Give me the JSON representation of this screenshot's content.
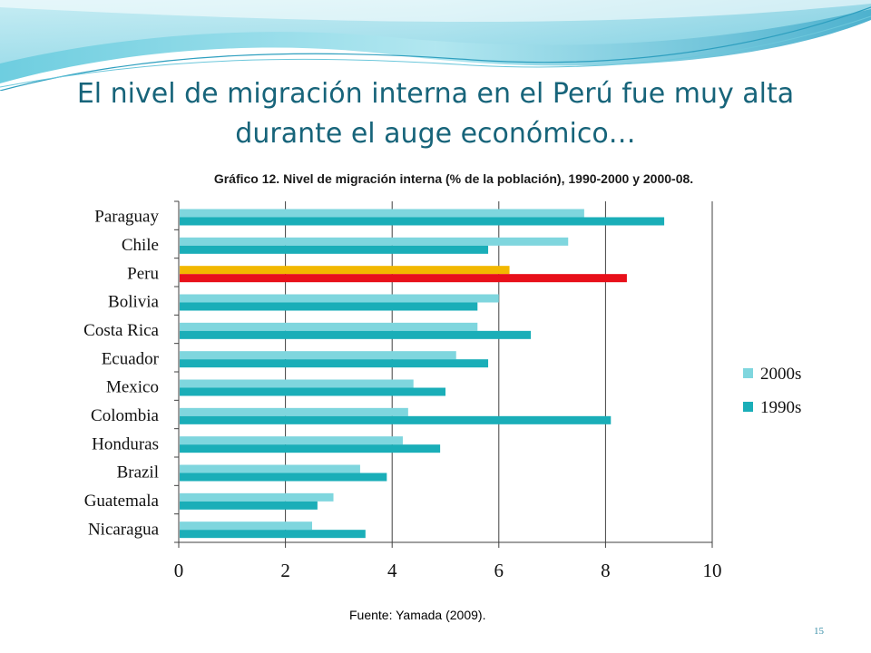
{
  "slide": {
    "title_line1": "El nivel de migración interna en el Perú fue muy alta",
    "title_line2": "durante el auge económico…",
    "source": "Fuente: Yamada (2009).",
    "page_number": "15"
  },
  "colors": {
    "title": "#17647a",
    "series_2000s": "#7fd6de",
    "series_1990s": "#1aaeb8",
    "highlight_2000s": "#f2b800",
    "highlight_1990s": "#e8101a",
    "grid": "#404040"
  },
  "chart_data": {
    "type": "bar",
    "orientation": "horizontal",
    "title": "Gráfico 12. Nivel de migración interna (% de la población), 1990-2000 y 2000-08.",
    "categories": [
      "Paraguay",
      "Chile",
      "Peru",
      "Bolivia",
      "Costa Rica",
      "Ecuador",
      "Mexico",
      "Colombia",
      "Honduras",
      "Brazil",
      "Guatemala",
      "Nicaragua"
    ],
    "highlight_category": "Peru",
    "series": [
      {
        "name": "2000s",
        "values": [
          7.6,
          7.3,
          6.2,
          6.0,
          5.6,
          5.2,
          4.4,
          4.3,
          4.2,
          3.4,
          2.9,
          2.5
        ]
      },
      {
        "name": "1990s",
        "values": [
          9.1,
          5.8,
          8.4,
          5.6,
          6.6,
          5.8,
          5.0,
          8.1,
          4.9,
          3.9,
          2.6,
          3.5
        ]
      }
    ],
    "xlim": [
      0,
      10
    ],
    "xticks": [
      0,
      2,
      4,
      6,
      8,
      10
    ],
    "grid": true,
    "legend_position": "right"
  }
}
